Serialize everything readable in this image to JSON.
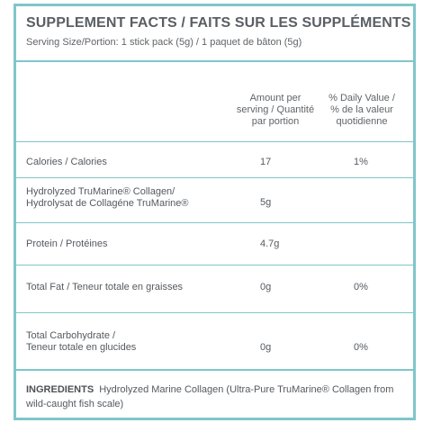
{
  "header": {
    "title": "SUPPLEMENT FACTS / FAITS SUR LES SUPPLÉMENTS",
    "serving": "Serving Size/Portion: 1 stick pack (5g) / 1 paquet de bâton (5g)"
  },
  "columns": {
    "amount_line1": "Amount per",
    "amount_line2": "serving / Quantité",
    "amount_line3": "par portion",
    "dv_line1": "% Daily Value /",
    "dv_line2": "% de la valeur",
    "dv_line3": "quotidienne"
  },
  "rows": [
    {
      "label_line1": "Calories / Calories",
      "label_line2": "",
      "amount": "17",
      "dv": "1%"
    },
    {
      "label_line1": "Hydrolyzed TruMarine® Collagen/",
      "label_line2": "Hydrolysat de Collagéne TruMarine®",
      "amount": "5g",
      "dv": ""
    },
    {
      "label_line1": "Protein / Protéines",
      "label_line2": "",
      "amount": "4.7g",
      "dv": ""
    },
    {
      "label_line1": "Total Fat / Teneur totale en graisses",
      "label_line2": "",
      "amount": "0g",
      "dv": "0%"
    },
    {
      "label_line1": "Total Carbohydrate /",
      "label_line2": "Teneur totale en glucides",
      "amount": "0g",
      "dv": "0%"
    }
  ],
  "ingredients": {
    "label": "INGREDIENTS",
    "text": "Hydrolyzed Marine Collagen (Ultra-Pure TruMarine® Collagen from wild-caught fish scale)"
  },
  "colors": {
    "border": "#7fc6c9",
    "text": "#555a5f"
  }
}
